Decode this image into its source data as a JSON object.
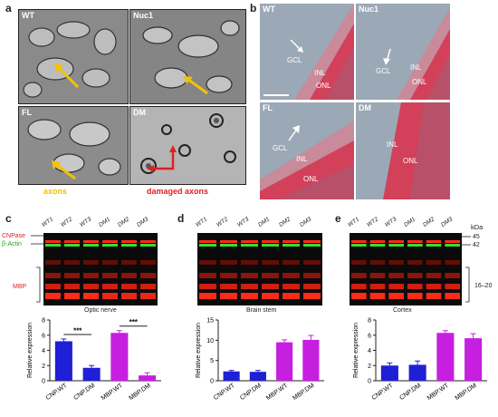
{
  "panels": {
    "a": "a",
    "b": "b",
    "c": "c",
    "d": "d",
    "e": "e"
  },
  "em": {
    "labels": [
      "WT",
      "Nuc1",
      "FL",
      "DM"
    ],
    "legend_axons": "axons",
    "legend_damaged": "damaged axons",
    "colors": {
      "axons": "#f2c200",
      "damaged": "#e02020"
    }
  },
  "histology": {
    "labels": [
      "WT",
      "Nuc1",
      "FL",
      "DM"
    ],
    "layers": {
      "gcl": "GCL",
      "inl": "INL",
      "onl": "ONL"
    }
  },
  "blots": {
    "lanes": [
      "WT1",
      "WT2",
      "WT3",
      "DM1",
      "DM2",
      "DM3"
    ],
    "left_labels": {
      "cnpase": "CNPase",
      "actin": "β-Actin",
      "mbp": "MBP"
    },
    "right_labels": {
      "kda": "kDa",
      "k45": "45",
      "k42": "42",
      "k1620": "16–20"
    },
    "tissues": [
      "Optic nerve",
      "Brain stem",
      "Cortex"
    ]
  },
  "chart_data": [
    {
      "type": "bar",
      "title": "",
      "categories": [
        "CNP.WT",
        "CNP.DM",
        "MBP.WT",
        "MBP.DM"
      ],
      "values": [
        5.2,
        1.7,
        6.3,
        0.7
      ],
      "errors": [
        0.3,
        0.3,
        0.3,
        0.35
      ],
      "colors": [
        "#1f1fd6",
        "#1f1fd6",
        "#c61fe0",
        "#c61fe0"
      ],
      "ylabel": "Relative expression",
      "ylim": [
        0,
        8
      ],
      "yticks": [
        0,
        2,
        4,
        6,
        8
      ],
      "significance": [
        "***",
        "***"
      ]
    },
    {
      "type": "bar",
      "title": "",
      "categories": [
        "CNP.WT",
        "CNP.DM",
        "MBP.WT",
        "MBP.DM"
      ],
      "values": [
        2.3,
        2.2,
        9.5,
        10.1
      ],
      "errors": [
        0.25,
        0.35,
        0.6,
        1.1
      ],
      "colors": [
        "#1f1fd6",
        "#1f1fd6",
        "#c61fe0",
        "#c61fe0"
      ],
      "ylabel": "Relative expression",
      "ylim": [
        0,
        15
      ],
      "yticks": [
        0,
        5,
        10,
        15
      ]
    },
    {
      "type": "bar",
      "title": "",
      "categories": [
        "CNP.WT",
        "CNP.DM",
        "MBP.WT",
        "MBP.DM"
      ],
      "values": [
        2.0,
        2.1,
        6.3,
        5.6
      ],
      "errors": [
        0.35,
        0.5,
        0.3,
        0.6
      ],
      "colors": [
        "#1f1fd6",
        "#1f1fd6",
        "#c61fe0",
        "#c61fe0"
      ],
      "ylabel": "Relative expression",
      "ylim": [
        0,
        8
      ],
      "yticks": [
        0,
        2,
        4,
        6,
        8
      ]
    }
  ]
}
